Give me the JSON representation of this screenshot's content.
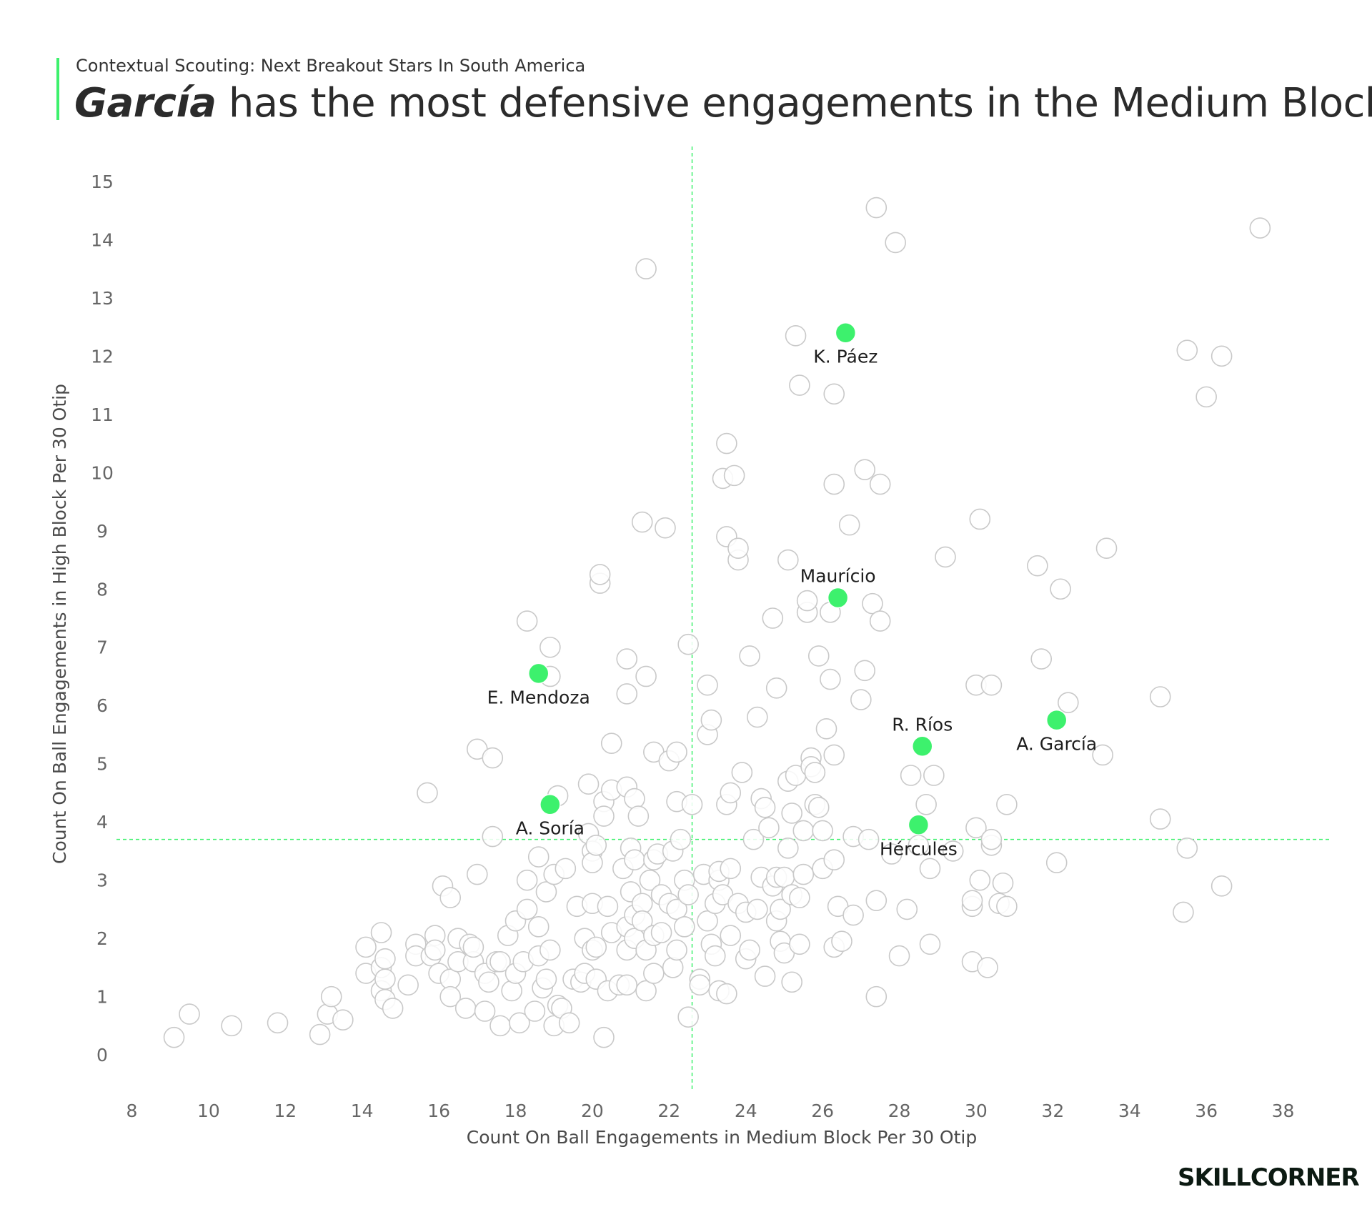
{
  "header": {
    "subtitle": "Contextual Scouting: Next Breakout Stars In South America",
    "title_highlight": "García",
    "title_rest": " has the most defensive engagements in the Medium Block"
  },
  "logo_text": "SKILLCORNER",
  "colors": {
    "accent": "#3df16d",
    "bubble_fill": "#ffffff",
    "bubble_stroke": "#c9c9c9",
    "guide": "#3df16d"
  },
  "chart_data": {
    "type": "scatter",
    "xlabel": "Count On Ball Engagements in Medium Block Per 30 Otip",
    "ylabel": "Count On Ball Engagements in High Block Per 30 Otip",
    "xlim": [
      7.6,
      39.2
    ],
    "ylim": [
      -0.6,
      15.6
    ],
    "x_ticks": [
      8,
      10,
      12,
      14,
      16,
      18,
      20,
      22,
      24,
      26,
      28,
      30,
      32,
      34,
      36,
      38
    ],
    "y_ticks": [
      0,
      1,
      2,
      3,
      4,
      5,
      6,
      7,
      8,
      9,
      10,
      11,
      12,
      13,
      14,
      15
    ],
    "reference_lines": {
      "x": 22.6,
      "y": 3.7
    },
    "grid": false,
    "highlighted": [
      {
        "label": "K. Páez",
        "x": 26.6,
        "y": 12.4,
        "label_pos": "below"
      },
      {
        "label": "Maurício",
        "x": 26.4,
        "y": 7.85,
        "label_pos": "above"
      },
      {
        "label": "E. Mendoza",
        "x": 18.6,
        "y": 6.55,
        "label_pos": "below"
      },
      {
        "label": "R. Ríos",
        "x": 28.6,
        "y": 5.3,
        "label_pos": "above"
      },
      {
        "label": "A. García",
        "x": 32.1,
        "y": 5.75,
        "label_pos": "below"
      },
      {
        "label": "A. Soría",
        "x": 18.9,
        "y": 4.3,
        "label_pos": "below"
      },
      {
        "label": "Hércules",
        "x": 28.5,
        "y": 3.95,
        "label_pos": "below"
      }
    ],
    "points": [
      [
        9.1,
        0.3
      ],
      [
        9.5,
        0.7
      ],
      [
        10.6,
        0.5
      ],
      [
        11.8,
        0.55
      ],
      [
        12.9,
        0.35
      ],
      [
        13.1,
        0.7
      ],
      [
        13.2,
        1.0
      ],
      [
        13.5,
        0.6
      ],
      [
        14.1,
        1.85
      ],
      [
        14.1,
        1.4
      ],
      [
        14.5,
        2.1
      ],
      [
        14.5,
        1.5
      ],
      [
        14.6,
        1.65
      ],
      [
        14.5,
        1.1
      ],
      [
        14.6,
        0.95
      ],
      [
        14.6,
        1.3
      ],
      [
        14.8,
        0.8
      ],
      [
        15.2,
        1.2
      ],
      [
        15.4,
        1.9
      ],
      [
        15.4,
        1.7
      ],
      [
        15.7,
        4.5
      ],
      [
        15.8,
        1.7
      ],
      [
        15.9,
        2.05
      ],
      [
        15.9,
        1.8
      ],
      [
        16.0,
        1.4
      ],
      [
        16.1,
        2.9
      ],
      [
        16.3,
        2.7
      ],
      [
        16.3,
        1.3
      ],
      [
        16.3,
        1.0
      ],
      [
        16.5,
        2.0
      ],
      [
        16.5,
        1.6
      ],
      [
        16.7,
        0.8
      ],
      [
        16.8,
        1.9
      ],
      [
        16.9,
        1.6
      ],
      [
        16.9,
        1.85
      ],
      [
        17.0,
        3.1
      ],
      [
        17.0,
        5.25
      ],
      [
        17.2,
        1.4
      ],
      [
        17.2,
        0.75
      ],
      [
        17.3,
        1.25
      ],
      [
        17.4,
        5.1
      ],
      [
        17.4,
        3.75
      ],
      [
        17.5,
        1.6
      ],
      [
        17.6,
        1.6
      ],
      [
        17.6,
        0.5
      ],
      [
        17.8,
        2.05
      ],
      [
        17.9,
        1.1
      ],
      [
        18.0,
        1.4
      ],
      [
        18.0,
        2.3
      ],
      [
        18.1,
        0.55
      ],
      [
        18.2,
        1.6
      ],
      [
        18.3,
        3.0
      ],
      [
        18.3,
        2.5
      ],
      [
        18.3,
        7.45
      ],
      [
        18.5,
        0.75
      ],
      [
        18.6,
        1.7
      ],
      [
        18.6,
        3.4
      ],
      [
        18.6,
        2.2
      ],
      [
        18.7,
        1.15
      ],
      [
        18.8,
        1.3
      ],
      [
        18.8,
        2.8
      ],
      [
        18.9,
        1.8
      ],
      [
        18.9,
        7.0
      ],
      [
        18.9,
        6.5
      ],
      [
        19.0,
        0.5
      ],
      [
        19.0,
        3.1
      ],
      [
        19.1,
        4.45
      ],
      [
        19.1,
        0.85
      ],
      [
        19.2,
        0.8
      ],
      [
        19.3,
        3.2
      ],
      [
        19.4,
        0.55
      ],
      [
        19.5,
        1.3
      ],
      [
        19.6,
        2.55
      ],
      [
        19.7,
        1.25
      ],
      [
        19.8,
        1.4
      ],
      [
        19.8,
        2.0
      ],
      [
        19.9,
        4.65
      ],
      [
        19.9,
        3.8
      ],
      [
        20.0,
        1.8
      ],
      [
        20.0,
        3.5
      ],
      [
        20.0,
        3.3
      ],
      [
        20.0,
        2.6
      ],
      [
        20.1,
        1.3
      ],
      [
        20.1,
        1.85
      ],
      [
        20.1,
        3.6
      ],
      [
        20.2,
        8.1
      ],
      [
        20.2,
        8.25
      ],
      [
        20.3,
        4.35
      ],
      [
        20.3,
        0.3
      ],
      [
        20.3,
        4.1
      ],
      [
        20.4,
        2.55
      ],
      [
        20.4,
        1.1
      ],
      [
        20.5,
        2.1
      ],
      [
        20.5,
        4.55
      ],
      [
        20.5,
        5.35
      ],
      [
        20.7,
        1.2
      ],
      [
        20.8,
        3.2
      ],
      [
        20.9,
        1.8
      ],
      [
        20.9,
        2.2
      ],
      [
        20.9,
        1.2
      ],
      [
        20.9,
        4.6
      ],
      [
        20.9,
        6.8
      ],
      [
        20.9,
        6.2
      ],
      [
        21.0,
        2.8
      ],
      [
        21.0,
        3.55
      ],
      [
        21.1,
        2.4
      ],
      [
        21.1,
        2.0
      ],
      [
        21.1,
        3.35
      ],
      [
        21.1,
        4.4
      ],
      [
        21.2,
        4.1
      ],
      [
        21.3,
        2.6
      ],
      [
        21.3,
        2.3
      ],
      [
        21.3,
        9.15
      ],
      [
        21.4,
        13.5
      ],
      [
        21.4,
        1.1
      ],
      [
        21.4,
        6.5
      ],
      [
        21.4,
        1.8
      ],
      [
        21.5,
        3.0
      ],
      [
        21.6,
        2.05
      ],
      [
        21.6,
        1.4
      ],
      [
        21.6,
        3.35
      ],
      [
        21.6,
        5.2
      ],
      [
        21.7,
        3.45
      ],
      [
        21.8,
        2.75
      ],
      [
        21.8,
        2.1
      ],
      [
        21.9,
        9.05
      ],
      [
        22.0,
        5.05
      ],
      [
        22.0,
        2.6
      ],
      [
        22.1,
        3.5
      ],
      [
        22.1,
        1.5
      ],
      [
        22.2,
        5.2
      ],
      [
        22.2,
        4.35
      ],
      [
        22.2,
        2.5
      ],
      [
        22.2,
        1.8
      ],
      [
        22.3,
        3.7
      ],
      [
        22.4,
        3.0
      ],
      [
        22.4,
        2.2
      ],
      [
        22.5,
        7.05
      ],
      [
        22.5,
        0.65
      ],
      [
        22.5,
        2.75
      ],
      [
        22.6,
        4.3
      ],
      [
        22.8,
        1.3
      ],
      [
        22.8,
        1.2
      ],
      [
        22.9,
        3.1
      ],
      [
        23.0,
        2.3
      ],
      [
        23.0,
        6.35
      ],
      [
        23.0,
        5.5
      ],
      [
        23.1,
        5.75
      ],
      [
        23.1,
        1.9
      ],
      [
        23.2,
        1.7
      ],
      [
        23.2,
        2.6
      ],
      [
        23.3,
        3.0
      ],
      [
        23.3,
        1.1
      ],
      [
        23.3,
        3.15
      ],
      [
        23.4,
        9.9
      ],
      [
        23.4,
        2.75
      ],
      [
        23.5,
        4.3
      ],
      [
        23.5,
        10.5
      ],
      [
        23.5,
        8.9
      ],
      [
        23.5,
        1.05
      ],
      [
        23.6,
        3.2
      ],
      [
        23.6,
        4.5
      ],
      [
        23.6,
        2.05
      ],
      [
        23.7,
        9.95
      ],
      [
        23.8,
        8.5
      ],
      [
        23.8,
        8.7
      ],
      [
        23.8,
        2.6
      ],
      [
        23.9,
        4.85
      ],
      [
        24.0,
        1.65
      ],
      [
        24.0,
        2.45
      ],
      [
        24.1,
        6.85
      ],
      [
        24.1,
        1.8
      ],
      [
        24.2,
        3.7
      ],
      [
        24.3,
        2.5
      ],
      [
        24.3,
        5.8
      ],
      [
        24.4,
        4.4
      ],
      [
        24.4,
        3.05
      ],
      [
        24.5,
        4.25
      ],
      [
        24.5,
        1.35
      ],
      [
        24.6,
        3.9
      ],
      [
        24.7,
        2.9
      ],
      [
        24.7,
        7.5
      ],
      [
        24.8,
        2.3
      ],
      [
        24.8,
        3.05
      ],
      [
        24.8,
        6.3
      ],
      [
        24.9,
        1.95
      ],
      [
        24.9,
        2.5
      ],
      [
        25.0,
        3.05
      ],
      [
        25.0,
        1.75
      ],
      [
        25.1,
        8.5
      ],
      [
        25.1,
        4.7
      ],
      [
        25.1,
        3.55
      ],
      [
        25.2,
        1.25
      ],
      [
        25.2,
        4.15
      ],
      [
        25.2,
        2.75
      ],
      [
        25.3,
        4.8
      ],
      [
        25.3,
        12.35
      ],
      [
        25.4,
        11.5
      ],
      [
        25.4,
        1.9
      ],
      [
        25.4,
        2.7
      ],
      [
        25.5,
        3.1
      ],
      [
        25.5,
        3.85
      ],
      [
        25.6,
        7.6
      ],
      [
        25.6,
        7.8
      ],
      [
        25.7,
        5.1
      ],
      [
        25.7,
        4.95
      ],
      [
        25.8,
        4.85
      ],
      [
        25.8,
        4.3
      ],
      [
        25.9,
        4.25
      ],
      [
        25.9,
        6.85
      ],
      [
        26.0,
        3.2
      ],
      [
        26.0,
        3.85
      ],
      [
        26.1,
        5.6
      ],
      [
        26.2,
        6.45
      ],
      [
        26.2,
        7.6
      ],
      [
        26.3,
        11.35
      ],
      [
        26.3,
        9.8
      ],
      [
        26.3,
        1.85
      ],
      [
        26.3,
        5.15
      ],
      [
        26.3,
        3.35
      ],
      [
        26.4,
        2.55
      ],
      [
        26.5,
        1.95
      ],
      [
        26.7,
        9.1
      ],
      [
        26.8,
        3.75
      ],
      [
        26.8,
        2.4
      ],
      [
        27.0,
        6.1
      ],
      [
        27.1,
        6.6
      ],
      [
        27.1,
        10.05
      ],
      [
        27.2,
        3.7
      ],
      [
        27.3,
        7.75
      ],
      [
        27.4,
        14.55
      ],
      [
        27.4,
        1.0
      ],
      [
        27.4,
        2.65
      ],
      [
        27.5,
        7.45
      ],
      [
        27.5,
        9.8
      ],
      [
        27.8,
        3.45
      ],
      [
        27.9,
        13.95
      ],
      [
        28.0,
        1.7
      ],
      [
        28.2,
        2.5
      ],
      [
        28.3,
        4.8
      ],
      [
        28.5,
        3.6
      ],
      [
        28.7,
        4.3
      ],
      [
        28.8,
        3.2
      ],
      [
        28.8,
        1.9
      ],
      [
        28.9,
        4.8
      ],
      [
        29.2,
        8.55
      ],
      [
        29.4,
        3.5
      ],
      [
        29.9,
        2.55
      ],
      [
        29.9,
        2.65
      ],
      [
        29.9,
        1.6
      ],
      [
        30.0,
        3.9
      ],
      [
        30.0,
        6.35
      ],
      [
        30.1,
        9.2
      ],
      [
        30.1,
        3.0
      ],
      [
        30.3,
        1.5
      ],
      [
        30.4,
        6.35
      ],
      [
        30.4,
        3.6
      ],
      [
        30.4,
        3.7
      ],
      [
        30.6,
        2.6
      ],
      [
        30.7,
        2.95
      ],
      [
        30.8,
        2.55
      ],
      [
        30.8,
        4.3
      ],
      [
        31.6,
        8.4
      ],
      [
        31.7,
        6.8
      ],
      [
        32.1,
        3.3
      ],
      [
        32.2,
        8.0
      ],
      [
        32.4,
        6.05
      ],
      [
        33.3,
        5.15
      ],
      [
        33.4,
        8.7
      ],
      [
        34.8,
        4.05
      ],
      [
        34.8,
        6.15
      ],
      [
        35.5,
        12.1
      ],
      [
        35.4,
        2.45
      ],
      [
        35.5,
        3.55
      ],
      [
        36.0,
        11.3
      ],
      [
        36.4,
        2.9
      ],
      [
        36.4,
        12.0
      ],
      [
        37.4,
        14.2
      ]
    ]
  }
}
